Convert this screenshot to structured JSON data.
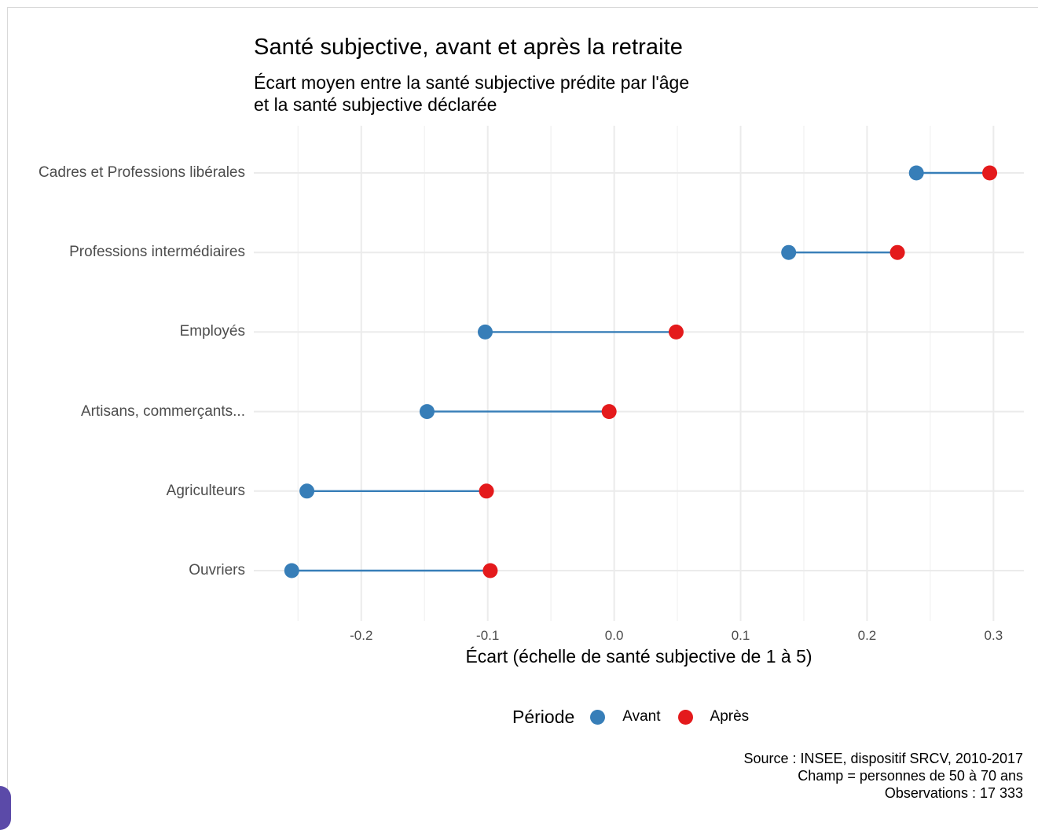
{
  "chart_data": {
    "type": "dumbbell",
    "title": "Santé subjective, avant et après la retraite",
    "subtitle_lines": [
      "Écart moyen entre la santé subjective prédite par l'âge",
      "et la santé subjective déclarée"
    ],
    "xlabel": "Écart (échelle de santé subjective de 1 à 5)",
    "xlim": [
      -0.285,
      0.324
    ],
    "xticks": [
      -0.2,
      -0.1,
      0.0,
      0.1,
      0.2,
      0.3
    ],
    "xtick_labels": [
      "-0.2",
      "-0.1",
      "0.0",
      "0.1",
      "0.2",
      "0.3"
    ],
    "grid": true,
    "legend": {
      "title": "Période",
      "position": "bottom",
      "items": [
        {
          "label": "Avant",
          "color": "#377eb8"
        },
        {
          "label": "Après",
          "color": "#e41a1c"
        }
      ]
    },
    "categories": [
      "Cadres et Professions libérales",
      "Professions intermédiaires",
      "Employés",
      "Artisans, commerçants...",
      "Agriculteurs",
      "Ouvriers"
    ],
    "series": [
      {
        "name": "Avant",
        "color": "#377eb8",
        "values": [
          0.239,
          0.138,
          -0.102,
          -0.148,
          -0.243,
          -0.255
        ]
      },
      {
        "name": "Après",
        "color": "#e41a1c",
        "values": [
          0.297,
          0.224,
          0.049,
          -0.004,
          -0.101,
          -0.098
        ]
      }
    ],
    "caption_lines": [
      "Source : INSEE, dispositif SRCV, 2010-2017",
      "Champ = personnes de 50 à 70 ans",
      "Observations : 17 333"
    ]
  }
}
